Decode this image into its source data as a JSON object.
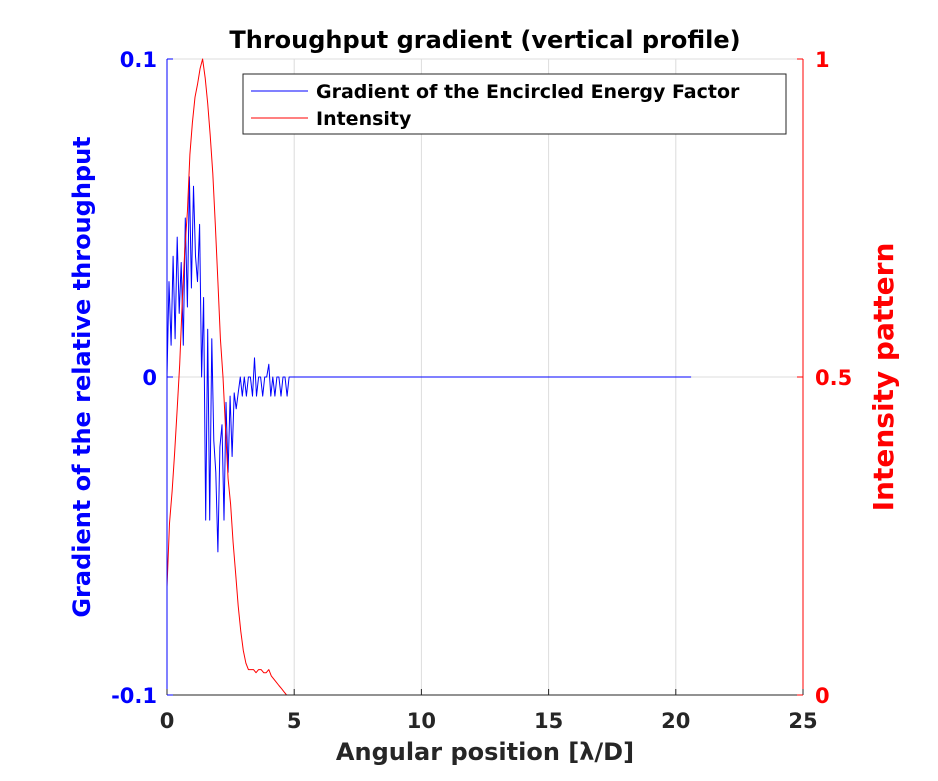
{
  "chart_data": {
    "type": "line",
    "title": "Throughput gradient (vertical profile)",
    "xlabel": "Angular position [λ/D]",
    "ylabel_left": "Gradient of the relative throughput",
    "ylabel_right": "Intensity pattern",
    "xlim": [
      0,
      25
    ],
    "ylim_left": [
      -0.1,
      0.1
    ],
    "ylim_right": [
      0,
      1
    ],
    "xticks": [
      "0",
      "5",
      "10",
      "15",
      "20",
      "25"
    ],
    "yticks_left": [
      "-0.1",
      "0",
      "0.1"
    ],
    "yticks_right": [
      "0",
      "0.5",
      "1"
    ],
    "grid": true,
    "legend_position": "top-right",
    "colors": {
      "left_axis": "#0000ff",
      "right_axis": "#ff0000",
      "grid": "#dcdcdc",
      "axis": "#262626"
    },
    "series": [
      {
        "name": "Gradient of the Encircled Energy Factor",
        "axis": "left",
        "color": "#0000ff",
        "x": [
          0,
          0.08,
          0.16,
          0.24,
          0.32,
          0.4,
          0.48,
          0.56,
          0.64,
          0.72,
          0.8,
          0.88,
          0.96,
          1.04,
          1.12,
          1.2,
          1.28,
          1.36,
          1.44,
          1.52,
          1.6,
          1.68,
          1.76,
          1.84,
          1.92,
          2.0,
          2.08,
          2.16,
          2.24,
          2.32,
          2.4,
          2.48,
          2.56,
          2.64,
          2.72,
          2.8,
          2.88,
          2.96,
          3.04,
          3.12,
          3.2,
          3.28,
          3.36,
          3.44,
          3.52,
          3.6,
          3.68,
          3.76,
          3.84,
          3.92,
          4.0,
          4.08,
          4.16,
          4.24,
          4.32,
          4.4,
          4.48,
          4.56,
          4.64,
          4.72,
          4.8,
          20.6
        ],
        "y": [
          0.0,
          0.03,
          0.01,
          0.038,
          0.012,
          0.044,
          0.02,
          0.036,
          0.01,
          0.05,
          0.022,
          0.063,
          0.028,
          0.06,
          0.038,
          0.03,
          0.048,
          0.0,
          0.025,
          -0.045,
          0.015,
          -0.045,
          0.012,
          -0.02,
          -0.03,
          -0.055,
          -0.022,
          -0.015,
          -0.045,
          -0.008,
          -0.03,
          -0.006,
          -0.025,
          -0.005,
          -0.01,
          -0.005,
          0.0,
          -0.006,
          0.0,
          -0.006,
          0.0,
          0.0,
          -0.006,
          0.006,
          -0.006,
          0.0,
          0.0,
          -0.006,
          0.0,
          0.0,
          0.004,
          -0.006,
          0.0,
          -0.006,
          0.0,
          0.0,
          -0.006,
          0.0,
          0.0,
          -0.006,
          0.0,
          0.0
        ]
      },
      {
        "name": "Intensity",
        "axis": "right",
        "color": "#ff0000",
        "x": [
          0,
          0.1,
          0.2,
          0.3,
          0.4,
          0.5,
          0.6,
          0.7,
          0.8,
          0.9,
          1.0,
          1.1,
          1.2,
          1.3,
          1.4,
          1.5,
          1.6,
          1.7,
          1.8,
          1.9,
          2.0,
          2.1,
          2.2,
          2.3,
          2.4,
          2.5,
          2.6,
          2.7,
          2.8,
          2.9,
          3.0,
          3.1,
          3.2,
          3.3,
          3.4,
          3.5,
          3.6,
          3.7,
          3.8,
          3.9,
          4.0,
          4.1,
          4.2,
          4.3,
          4.4,
          4.5,
          4.6,
          4.7,
          4.8,
          20.6
        ],
        "y": [
          0.17,
          0.27,
          0.32,
          0.38,
          0.45,
          0.52,
          0.62,
          0.7,
          0.76,
          0.85,
          0.9,
          0.94,
          0.96,
          0.985,
          1.0,
          0.97,
          0.93,
          0.88,
          0.82,
          0.74,
          0.65,
          0.56,
          0.5,
          0.42,
          0.34,
          0.3,
          0.24,
          0.19,
          0.14,
          0.1,
          0.07,
          0.05,
          0.04,
          0.04,
          0.04,
          0.035,
          0.04,
          0.04,
          0.035,
          0.035,
          0.04,
          0.03,
          0.025,
          0.02,
          0.015,
          0.01,
          0.005,
          0.0,
          0.0,
          0.0
        ]
      }
    ]
  }
}
